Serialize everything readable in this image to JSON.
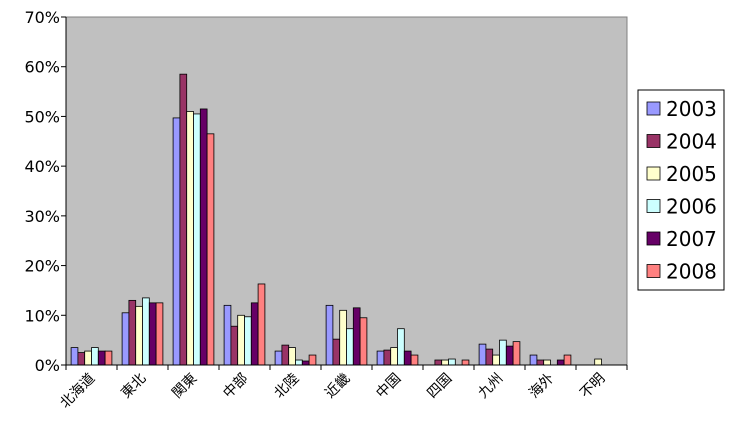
{
  "chart_data": {
    "type": "bar",
    "categories": [
      "北海道",
      "東北",
      "関東",
      "中部",
      "北陸",
      "近畿",
      "中国",
      "四国",
      "九州",
      "海外",
      "不明"
    ],
    "series": [
      {
        "name": "2003",
        "color": "#9999ff",
        "values": [
          3.5,
          10.5,
          49.7,
          12.0,
          2.8,
          12.0,
          2.8,
          0.0,
          4.2,
          2.0,
          0.0
        ]
      },
      {
        "name": "2004",
        "color": "#993366",
        "values": [
          2.5,
          13.0,
          58.5,
          7.8,
          4.0,
          5.2,
          3.0,
          1.0,
          3.2,
          1.0,
          0.0
        ]
      },
      {
        "name": "2005",
        "color": "#ffffcc",
        "values": [
          2.8,
          11.8,
          51.0,
          10.0,
          3.5,
          11.0,
          3.5,
          1.0,
          2.0,
          1.0,
          1.2
        ]
      },
      {
        "name": "2006",
        "color": "#ccffff",
        "values": [
          3.5,
          13.5,
          50.5,
          9.7,
          1.0,
          7.3,
          7.3,
          1.2,
          5.0,
          0.0,
          0.0
        ]
      },
      {
        "name": "2007",
        "color": "#660066",
        "values": [
          2.8,
          12.5,
          51.5,
          12.5,
          0.8,
          11.5,
          2.8,
          0.0,
          3.8,
          1.0,
          0.0
        ]
      },
      {
        "name": "2008",
        "color": "#ff8080",
        "values": [
          2.8,
          12.5,
          46.5,
          16.3,
          2.0,
          9.5,
          2.0,
          1.0,
          4.7,
          2.0,
          0.0
        ]
      }
    ],
    "ylim": [
      0,
      70
    ],
    "yticks": [
      "0%",
      "10%",
      "20%",
      "30%",
      "40%",
      "50%",
      "60%",
      "70%"
    ],
    "ytick_values": [
      0,
      10,
      20,
      30,
      40,
      50,
      60,
      70
    ],
    "grid": false,
    "plot_background": "#c0c0c0",
    "legend_position": "right"
  }
}
